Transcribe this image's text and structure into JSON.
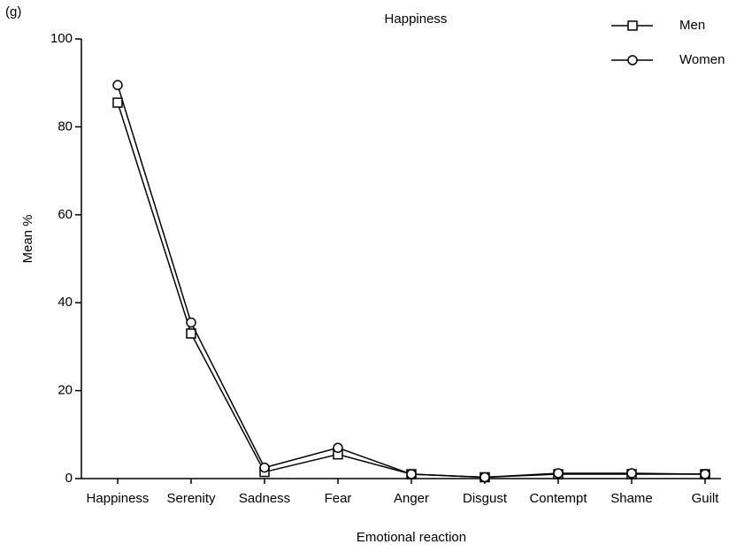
{
  "chart_data": {
    "type": "line",
    "panel_label": "(g)",
    "title": "Happiness",
    "x_label": "Emotional reaction",
    "y_label": "Mean %",
    "categories": [
      "Happiness",
      "Serenity",
      "Sadness",
      "Fear",
      "Anger",
      "Disgust",
      "Contempt",
      "Shame",
      "Guilt"
    ],
    "series": [
      {
        "name": "Men",
        "color": "#000000",
        "marker": "square",
        "values": [
          85.5,
          33,
          1.5,
          5.5,
          1,
          0.3,
          1,
          1,
          1
        ]
      },
      {
        "name": "Women",
        "color": "#000000",
        "marker": "circle",
        "values": [
          89.5,
          35.5,
          2.5,
          7,
          1,
          0.3,
          1.2,
          1.2,
          1
        ]
      }
    ],
    "ylim": [
      0,
      100
    ],
    "yticks": [
      0,
      20,
      40,
      60,
      80,
      100
    ],
    "legend": "upper right"
  }
}
